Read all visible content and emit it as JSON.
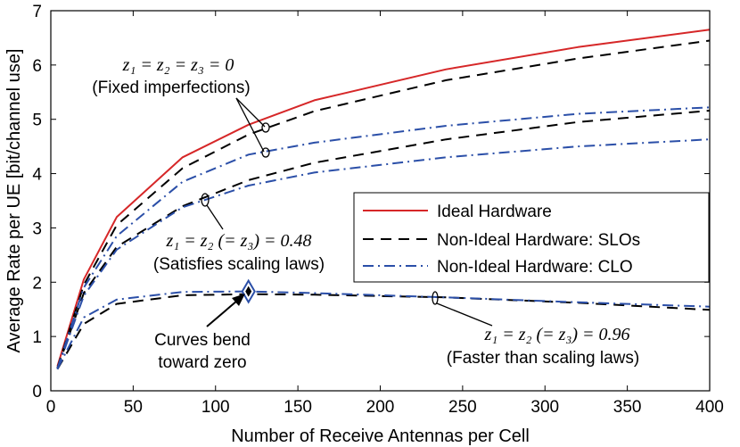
{
  "chart_data": {
    "type": "line",
    "xlabel": "Number of Receive Antennas per Cell",
    "ylabel": "Average Rate per UE [bit/channel use]",
    "xlim": [
      0,
      400
    ],
    "ylim": [
      0,
      7
    ],
    "xticks": [
      0,
      50,
      100,
      150,
      200,
      250,
      300,
      350,
      400
    ],
    "yticks": [
      0,
      1,
      2,
      3,
      4,
      5,
      6,
      7
    ],
    "grid": false,
    "legend_position": "center-right",
    "legend": [
      "Ideal Hardware",
      "Non-Ideal Hardware: SLOs",
      "Non-Ideal Hardware: CLO"
    ],
    "series": [
      {
        "name": "Ideal Hardware",
        "style": "solid",
        "color": "#d62728",
        "x": [
          4,
          20,
          40,
          80,
          120,
          160,
          240,
          320,
          400
        ],
        "y": [
          0.45,
          2.05,
          3.2,
          4.3,
          4.9,
          5.35,
          5.92,
          6.33,
          6.65
        ]
      },
      {
        "name": "Non-Ideal Hardware: SLOs",
        "style": "dashed",
        "color": "#000000",
        "x": [
          4,
          20,
          40,
          80,
          120,
          160,
          240,
          320,
          400
        ],
        "y": [
          0.42,
          1.95,
          3.05,
          4.1,
          4.72,
          5.15,
          5.72,
          6.12,
          6.45
        ]
      },
      {
        "name": "Non-Ideal Hardware: SLOs",
        "style": "dashed",
        "color": "#000000",
        "x": [
          4,
          20,
          40,
          80,
          120,
          160,
          240,
          320,
          400
        ],
        "y": [
          0.41,
          1.8,
          2.65,
          3.4,
          3.88,
          4.2,
          4.63,
          4.95,
          5.16
        ]
      },
      {
        "name": "Non-Ideal Hardware: SLOs",
        "style": "dashed",
        "color": "#000000",
        "x": [
          4,
          20,
          40,
          80,
          120,
          160,
          240,
          320,
          400
        ],
        "y": [
          0.4,
          1.23,
          1.6,
          1.76,
          1.78,
          1.77,
          1.72,
          1.62,
          1.49
        ]
      },
      {
        "name": "Non-Ideal Hardware: CLO",
        "style": "dashdot",
        "color": "#2b4fa8",
        "x": [
          4,
          20,
          40,
          80,
          120,
          160,
          240,
          320,
          400
        ],
        "y": [
          0.41,
          1.9,
          2.85,
          3.85,
          4.35,
          4.57,
          4.88,
          5.1,
          5.22
        ]
      },
      {
        "name": "Non-Ideal Hardware: CLO",
        "style": "dashdot",
        "color": "#2b4fa8",
        "x": [
          4,
          20,
          40,
          80,
          120,
          160,
          240,
          320,
          400
        ],
        "y": [
          0.4,
          1.75,
          2.6,
          3.38,
          3.78,
          4.02,
          4.3,
          4.5,
          4.63
        ]
      },
      {
        "name": "Non-Ideal Hardware: CLO",
        "style": "dashdot",
        "color": "#2b4fa8",
        "x": [
          4,
          20,
          40,
          80,
          120,
          160,
          240,
          320,
          400
        ],
        "y": [
          0.4,
          1.35,
          1.68,
          1.82,
          1.83,
          1.8,
          1.72,
          1.63,
          1.55
        ]
      }
    ],
    "annotations": [
      {
        "math": "z₁ = z₂ = z₃ = 0",
        "text": "(Fixed imperfections)"
      },
      {
        "math": "z₁ = z₂ (= z₃) = 0.48",
        "text": "(Satisfies scaling laws)"
      },
      {
        "text1": "Curves bend",
        "text2": "toward zero"
      },
      {
        "math": "z₁ = z₂ (= z₃) = 0.96",
        "text": "(Faster than scaling laws)"
      }
    ]
  }
}
